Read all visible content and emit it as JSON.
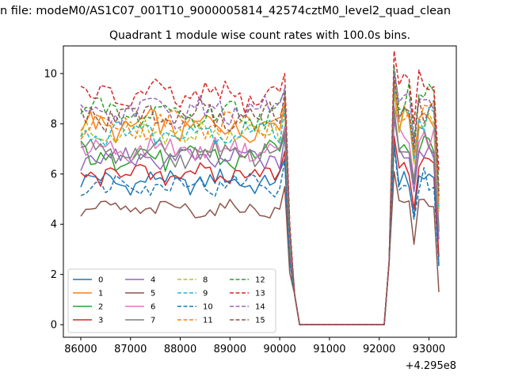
{
  "header": {
    "file_title": "n file: modeM0/AS1C07_001T10_9000005814_42574cztM0_level2_quad_clean"
  },
  "chart_data": {
    "type": "line",
    "title": "Quadrant 1 module wise count rates with 100.0s bins.",
    "xlabel": "",
    "ylabel": "",
    "xlim": [
      85650,
      93550
    ],
    "ylim": [
      -0.5,
      11.1
    ],
    "x_offset_label": "+4.295e8",
    "xticks": [
      86000,
      87000,
      88000,
      89000,
      90000,
      91000,
      92000,
      93000
    ],
    "xtick_labels": [
      "86000",
      "87000",
      "88000",
      "89000",
      "90000",
      "91000",
      "92000",
      "93000"
    ],
    "yticks": [
      0,
      2,
      4,
      6,
      8,
      10
    ],
    "ytick_labels": [
      "0",
      "2",
      "4",
      "6",
      "8",
      "10"
    ],
    "legend_position": "lower-left",
    "legend_columns": 4,
    "colors": [
      "#1f77b4",
      "#ff7f0e",
      "#2ca02c",
      "#d62728",
      "#9467bd",
      "#8c564b",
      "#e377c2",
      "#7f7f7f",
      "#bcbd22",
      "#17becf"
    ],
    "series": [
      {
        "name": "0",
        "style": "solid",
        "level": 5.7,
        "amp": 0.35,
        "tail": 5.9
      },
      {
        "name": "1",
        "style": "solid",
        "level": 7.9,
        "amp": 0.45,
        "tail": 8.1
      },
      {
        "name": "2",
        "style": "solid",
        "level": 6.7,
        "amp": 0.45,
        "tail": 7.2
      },
      {
        "name": "3",
        "style": "solid",
        "level": 6.0,
        "amp": 0.35,
        "tail": 6.2
      },
      {
        "name": "4",
        "style": "solid",
        "level": 6.6,
        "amp": 0.35,
        "tail": 6.9
      },
      {
        "name": "5",
        "style": "solid",
        "level": 4.6,
        "amp": 0.25,
        "tail": 4.8
      },
      {
        "name": "6",
        "style": "solid",
        "level": 7.0,
        "amp": 0.35,
        "tail": 7.4
      },
      {
        "name": "7",
        "style": "solid",
        "level": 6.8,
        "amp": 0.4,
        "tail": 7.3
      },
      {
        "name": "8",
        "style": "dashed",
        "level": 7.6,
        "amp": 0.4,
        "tail": 8.0
      },
      {
        "name": "9",
        "style": "dashed",
        "level": 7.7,
        "amp": 0.4,
        "tail": 8.2
      },
      {
        "name": "10",
        "style": "dashed",
        "level": 5.6,
        "amp": 0.35,
        "tail": 5.8
      },
      {
        "name": "11",
        "style": "dashed",
        "level": 8.0,
        "amp": 0.45,
        "tail": 8.4
      },
      {
        "name": "12",
        "style": "dashed",
        "level": 8.4,
        "amp": 0.45,
        "tail": 9.0
      },
      {
        "name": "13",
        "style": "dashed",
        "level": 9.1,
        "amp": 0.45,
        "tail": 9.6
      },
      {
        "name": "14",
        "style": "dashed",
        "level": 8.5,
        "amp": 0.45,
        "tail": 8.8
      },
      {
        "name": "15",
        "style": "dashed",
        "level": 8.3,
        "amp": 0.45,
        "tail": 8.6
      }
    ]
  }
}
